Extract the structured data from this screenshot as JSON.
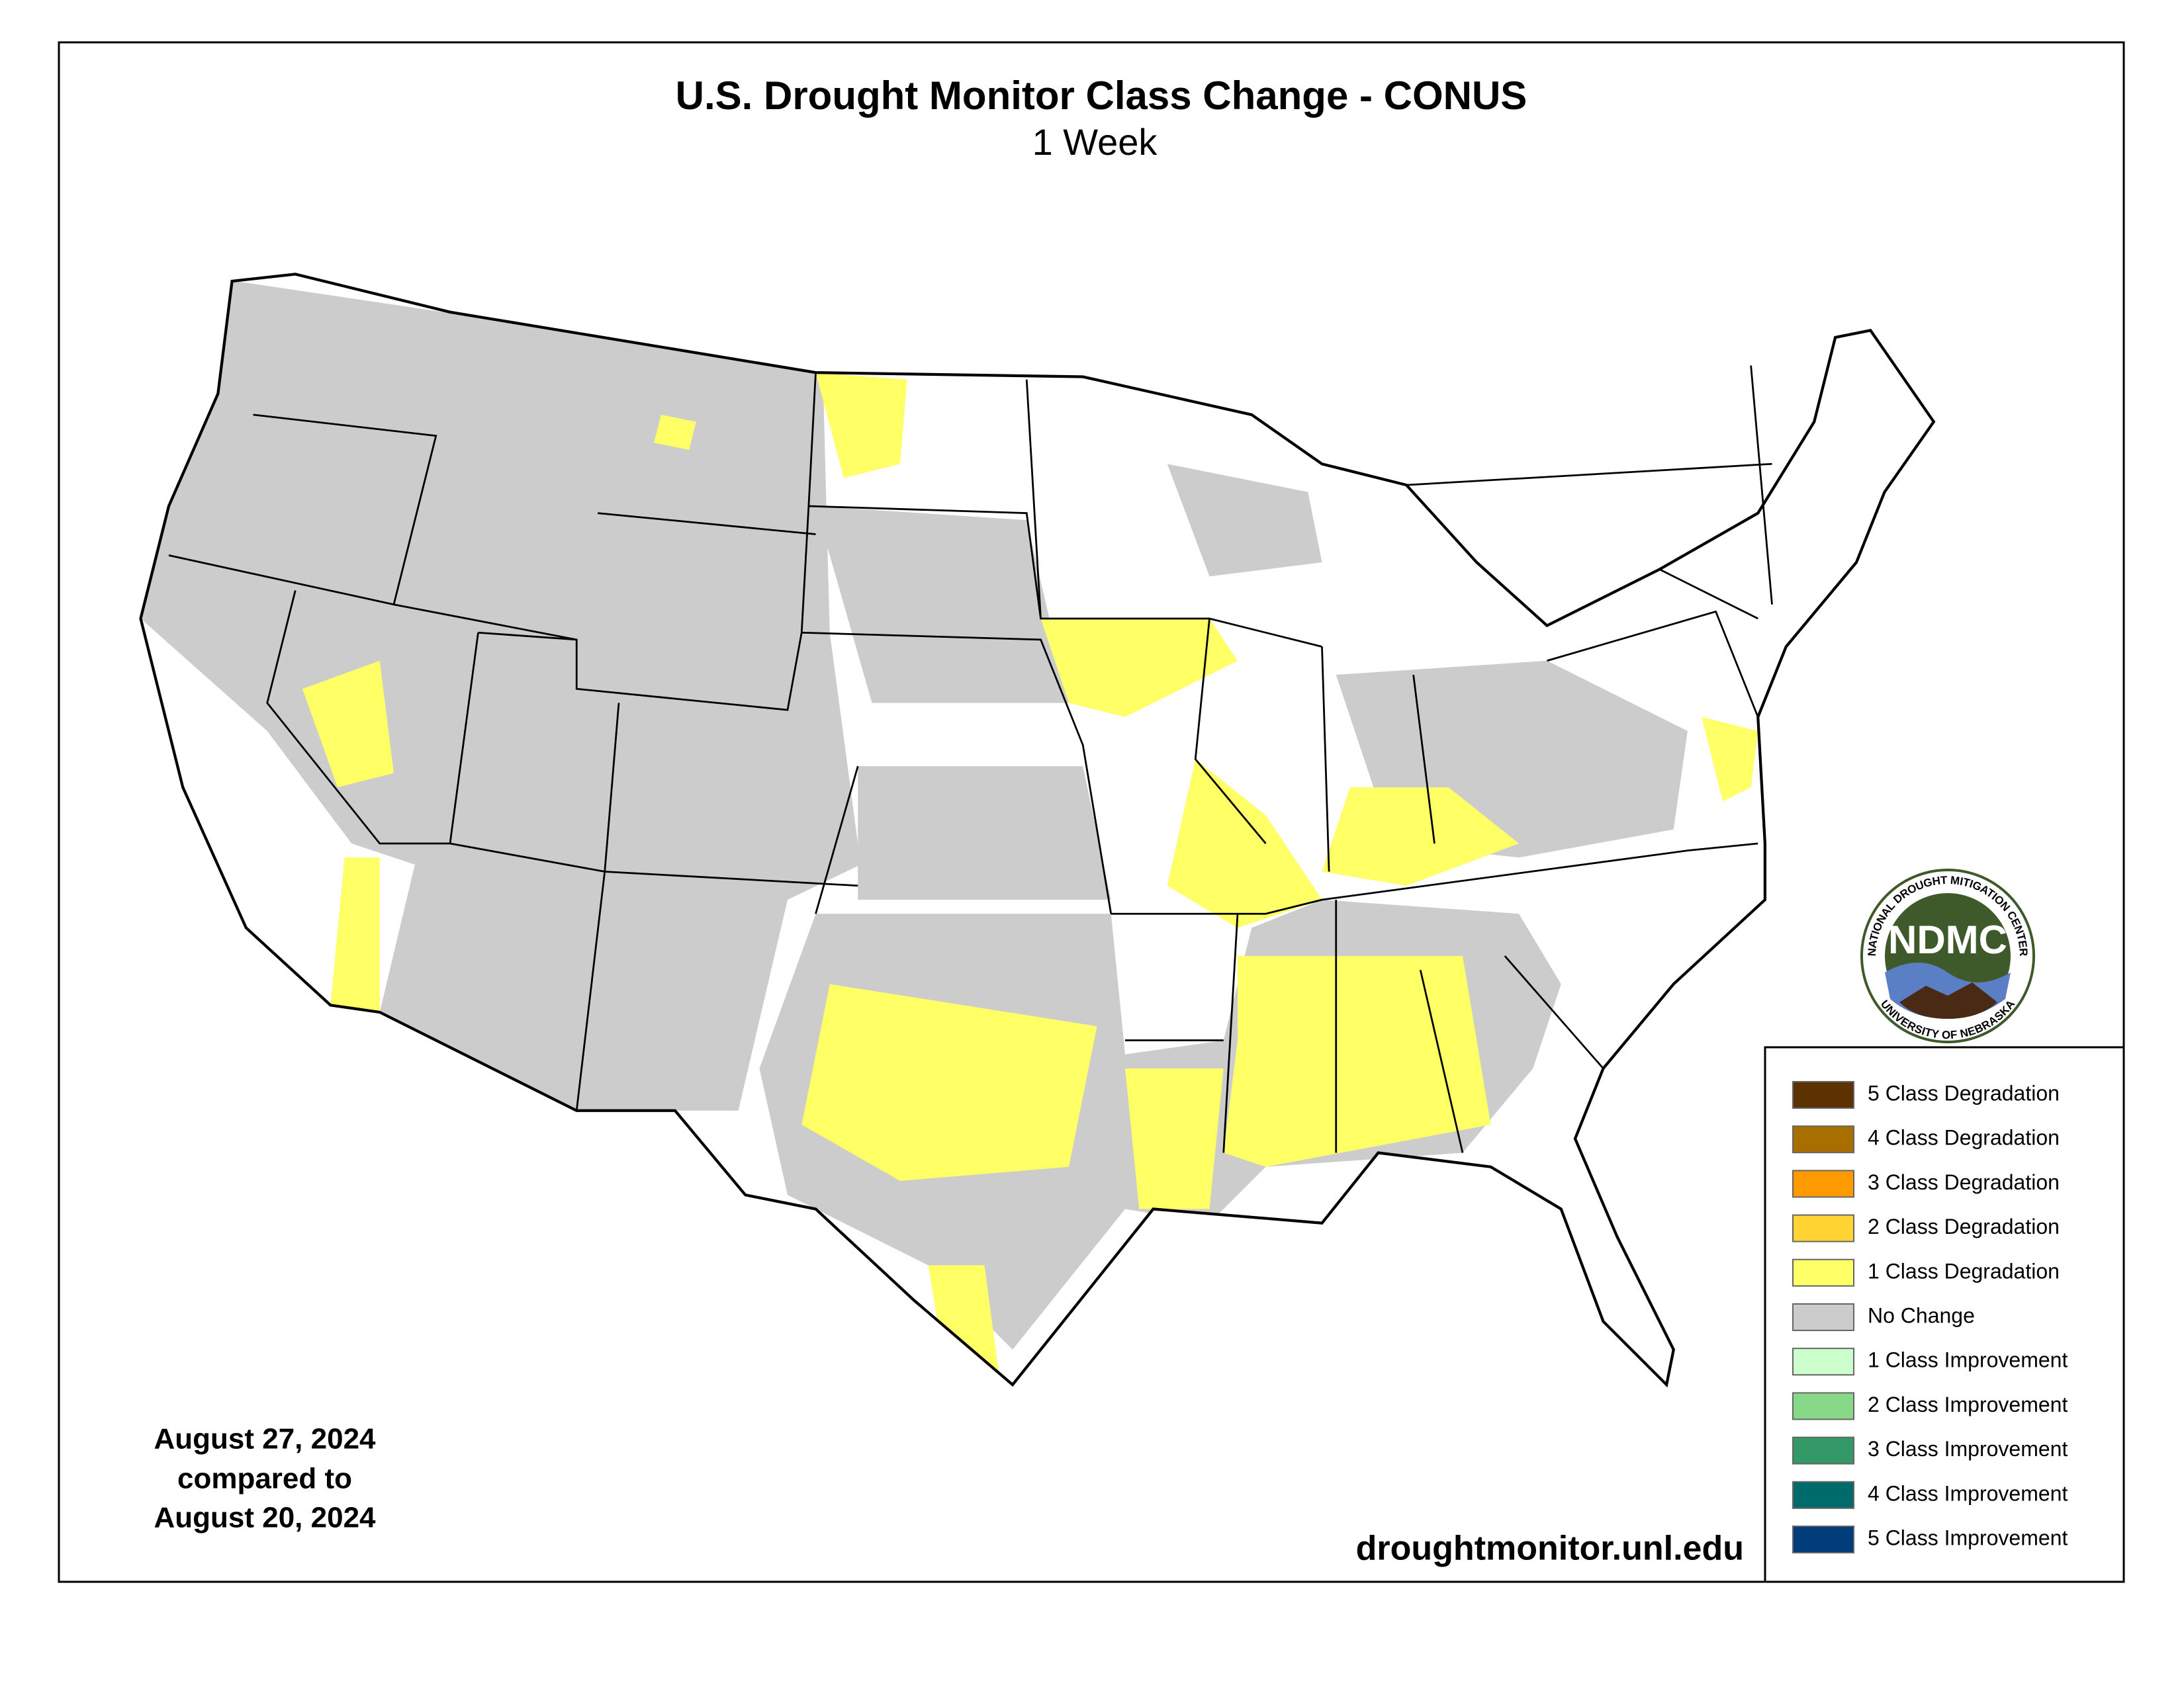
{
  "title": "U.S. Drought Monitor Class Change - CONUS",
  "subtitle": "1 Week",
  "legend": [
    {
      "label": "5 Class Degradation",
      "color": "#5c3300"
    },
    {
      "label": "4 Class Degradation",
      "color": "#a86e00"
    },
    {
      "label": "3 Class Degradation",
      "color": "#ff9900"
    },
    {
      "label": "2 Class Degradation",
      "color": "#ffd433"
    },
    {
      "label": "1 Class Degradation",
      "color": "#ffff66"
    },
    {
      "label": "No Change",
      "color": "#cccccc"
    },
    {
      "label": "1 Class Improvement",
      "color": "#ccffcc"
    },
    {
      "label": "2 Class Improvement",
      "color": "#88d88a"
    },
    {
      "label": "3 Class Improvement",
      "color": "#339966"
    },
    {
      "label": "4 Class Improvement",
      "color": "#006b6b"
    },
    {
      "label": "5 Class Improvement",
      "color": "#003d7a"
    }
  ],
  "dates": [
    "August 27, 2024",
    "compared to",
    "August 20, 2024"
  ],
  "url": "droughtmonitor.unl.edu",
  "logo": {
    "abbr": "NDMC",
    "top": "NATIONAL DROUGHT MITIGATION CENTER",
    "bottom": "UNIVERSITY OF NEBRASKA"
  }
}
